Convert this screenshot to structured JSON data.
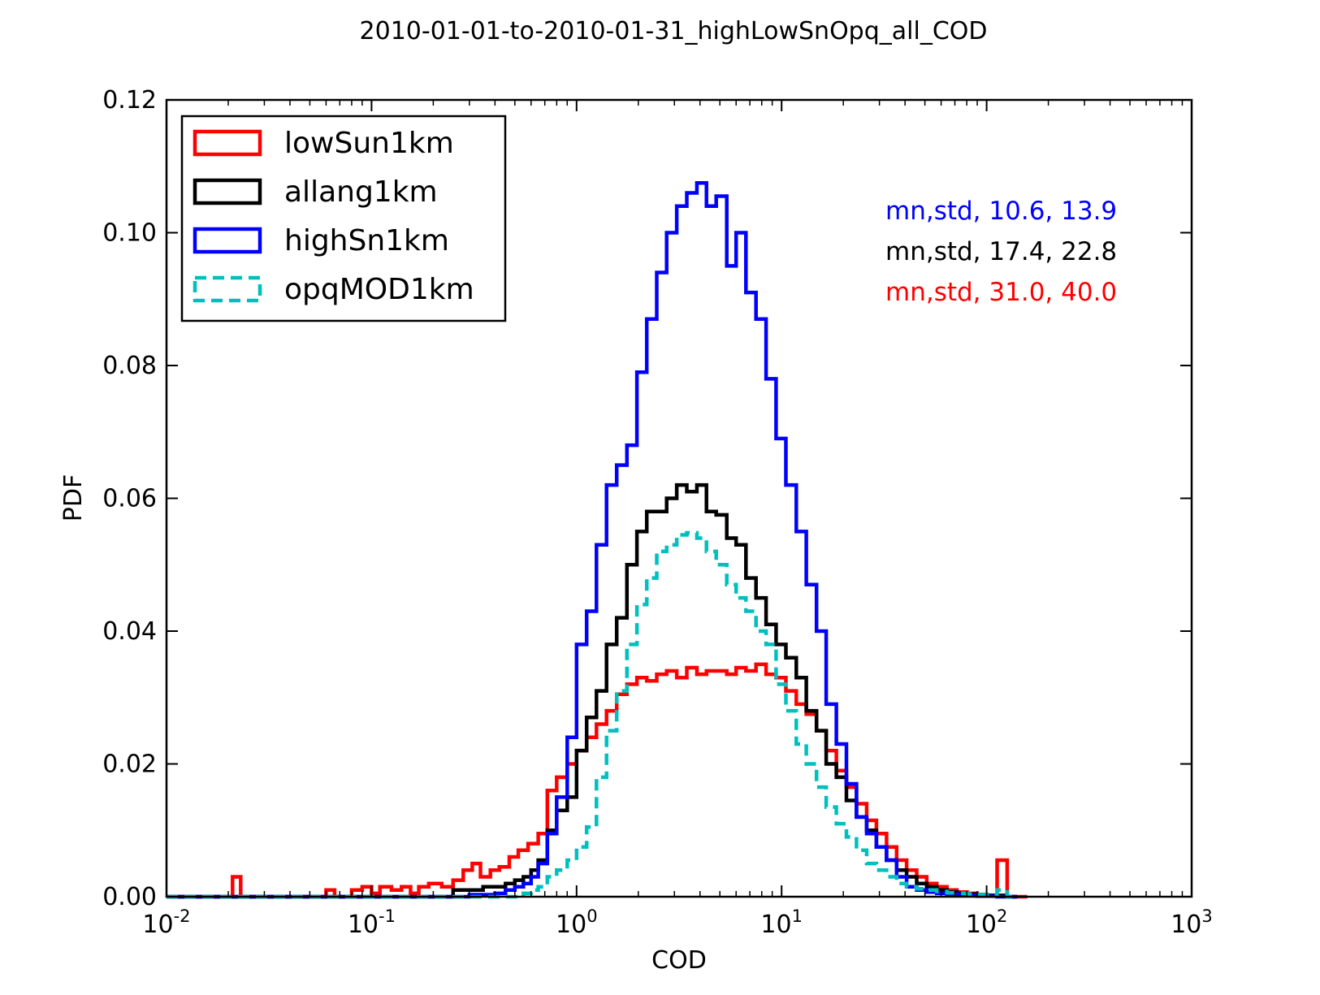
{
  "chart_data": {
    "type": "line",
    "title": "2010-01-01-to-2010-01-31_highLowSnOpq_all_COD",
    "xlabel": "COD",
    "ylabel": "PDF",
    "xscale": "log",
    "xlim": [
      0.01,
      1000
    ],
    "ylim": [
      0,
      0.12
    ],
    "x_ticks": [
      0.01,
      0.1,
      1,
      10,
      100,
      1000
    ],
    "x_tick_labels": [
      {
        "base": "10",
        "exp": "-2"
      },
      {
        "base": "10",
        "exp": "-1"
      },
      {
        "base": "10",
        "exp": "0"
      },
      {
        "base": "10",
        "exp": "1"
      },
      {
        "base": "10",
        "exp": "2"
      },
      {
        "base": "10",
        "exp": "3"
      }
    ],
    "y_ticks": [
      0,
      0.02,
      0.04,
      0.06,
      0.08,
      0.1,
      0.12
    ],
    "y_tick_labels": [
      "0.00",
      "0.02",
      "0.04",
      "0.06",
      "0.08",
      "0.10",
      "0.12"
    ],
    "grid": false,
    "legend_position": "top-left",
    "series": [
      {
        "name": "lowSun1km",
        "color": "#ff0000",
        "style": "solid-step",
        "x": [
          0.01,
          0.021,
          0.023,
          0.06,
          0.066,
          0.08,
          0.09,
          0.1,
          0.11,
          0.125,
          0.14,
          0.155,
          0.17,
          0.19,
          0.22,
          0.25,
          0.28,
          0.31,
          0.34,
          0.38,
          0.42,
          0.47,
          0.52,
          0.58,
          0.65,
          0.72,
          0.8,
          0.9,
          1.0,
          1.12,
          1.25,
          1.4,
          1.57,
          1.76,
          1.97,
          2.2,
          2.46,
          2.75,
          3.08,
          3.45,
          3.86,
          4.3,
          4.8,
          5.4,
          6.0,
          6.7,
          7.5,
          8.4,
          9.4,
          10.5,
          11.8,
          13.2,
          14.8,
          16.5,
          18.5,
          20.7,
          23.2,
          26.0,
          29.0,
          32.5,
          36.4,
          40.7,
          45.6,
          51.0,
          57.1,
          64.0,
          71.6,
          80.2,
          89.8,
          100.5,
          112.5,
          126.0,
          141.0,
          158.0
        ],
        "y": [
          0.0,
          0.003,
          0.0,
          0.001,
          0.0,
          0.001,
          0.0015,
          0.0005,
          0.0015,
          0.001,
          0.0015,
          0.0005,
          0.0015,
          0.002,
          0.0015,
          0.0025,
          0.004,
          0.005,
          0.003,
          0.004,
          0.0045,
          0.006,
          0.007,
          0.008,
          0.0095,
          0.016,
          0.018,
          0.02,
          0.022,
          0.024,
          0.026,
          0.028,
          0.0305,
          0.032,
          0.033,
          0.0325,
          0.0335,
          0.034,
          0.033,
          0.0345,
          0.0335,
          0.034,
          0.034,
          0.0335,
          0.0345,
          0.034,
          0.035,
          0.0335,
          0.033,
          0.031,
          0.029,
          0.0275,
          0.025,
          0.022,
          0.019,
          0.0165,
          0.014,
          0.0115,
          0.0095,
          0.0075,
          0.0055,
          0.004,
          0.003,
          0.002,
          0.0015,
          0.001,
          0.0007,
          0.0005,
          0.0003,
          0.0002,
          0.0055,
          0.0,
          0.0,
          0.0
        ]
      },
      {
        "name": "allang1km",
        "color": "#000000",
        "style": "solid-step",
        "x": [
          0.01,
          0.25,
          0.3,
          0.35,
          0.4,
          0.45,
          0.5,
          0.55,
          0.6,
          0.65,
          0.72,
          0.8,
          0.9,
          1.0,
          1.12,
          1.25,
          1.4,
          1.57,
          1.76,
          1.97,
          2.2,
          2.46,
          2.75,
          3.08,
          3.45,
          3.86,
          4.3,
          4.8,
          5.4,
          6.0,
          6.7,
          7.5,
          8.4,
          9.4,
          10.5,
          11.8,
          13.2,
          14.8,
          16.5,
          18.5,
          20.7,
          23.2,
          26.0,
          29.0,
          32.5,
          36.4,
          40.7,
          45.6,
          51.0,
          57.1,
          64.0,
          71.6,
          80.2,
          89.8,
          100.5,
          112.5,
          126.0,
          141.0
        ],
        "y": [
          0.0,
          0.001,
          0.001,
          0.0015,
          0.0015,
          0.002,
          0.0025,
          0.003,
          0.004,
          0.0055,
          0.01,
          0.013,
          0.015,
          0.022,
          0.027,
          0.031,
          0.038,
          0.042,
          0.05,
          0.055,
          0.058,
          0.058,
          0.06,
          0.062,
          0.061,
          0.062,
          0.058,
          0.0575,
          0.054,
          0.053,
          0.048,
          0.045,
          0.041,
          0.038,
          0.036,
          0.033,
          0.028,
          0.025,
          0.02,
          0.018,
          0.0145,
          0.012,
          0.01,
          0.0075,
          0.0055,
          0.004,
          0.003,
          0.002,
          0.0015,
          0.001,
          0.0007,
          0.0005,
          0.0004,
          0.0003,
          0.0002,
          0.0002,
          0.0,
          0.0
        ]
      },
      {
        "name": "highSn1km",
        "color": "#0000ff",
        "style": "solid-step",
        "x": [
          0.01,
          0.3,
          0.4,
          0.45,
          0.5,
          0.55,
          0.6,
          0.65,
          0.72,
          0.8,
          0.9,
          1.0,
          1.12,
          1.25,
          1.4,
          1.57,
          1.76,
          1.97,
          2.2,
          2.46,
          2.75,
          3.08,
          3.45,
          3.86,
          4.3,
          4.8,
          5.4,
          6.0,
          6.7,
          7.5,
          8.4,
          9.4,
          10.5,
          11.8,
          13.2,
          14.8,
          16.5,
          18.5,
          20.7,
          23.2,
          26.0,
          29.0,
          32.5,
          36.4,
          40.7,
          45.6,
          51.0,
          57.1,
          64.0,
          71.6,
          80.2,
          89.8,
          100.5,
          112.5,
          126.0,
          141.0
        ],
        "y": [
          0.0,
          0.0003,
          0.0005,
          0.001,
          0.0015,
          0.002,
          0.003,
          0.005,
          0.0095,
          0.015,
          0.024,
          0.038,
          0.043,
          0.053,
          0.062,
          0.065,
          0.068,
          0.079,
          0.087,
          0.094,
          0.1,
          0.104,
          0.106,
          0.1075,
          0.104,
          0.1055,
          0.095,
          0.1,
          0.091,
          0.087,
          0.078,
          0.069,
          0.062,
          0.055,
          0.047,
          0.04,
          0.029,
          0.023,
          0.017,
          0.012,
          0.0095,
          0.0075,
          0.0055,
          0.003,
          0.0015,
          0.001,
          0.0007,
          0.0005,
          0.0004,
          0.0003,
          0.0002,
          0.0001,
          0.0001,
          0.0,
          0.0,
          0.0
        ]
      },
      {
        "name": "opqMOD1km",
        "color": "#00bfbf",
        "style": "dashed-step",
        "x": [
          0.01,
          0.55,
          0.6,
          0.65,
          0.72,
          0.8,
          0.9,
          1.0,
          1.12,
          1.25,
          1.4,
          1.57,
          1.76,
          1.97,
          2.2,
          2.46,
          2.75,
          3.08,
          3.45,
          3.86,
          4.3,
          4.8,
          5.4,
          6.0,
          6.7,
          7.5,
          8.4,
          9.4,
          10.5,
          11.8,
          13.2,
          14.8,
          16.5,
          18.5,
          20.7,
          23.2,
          26.0,
          29.0,
          32.5,
          36.4,
          40.7,
          45.6,
          51.0,
          57.1,
          64.0,
          71.6,
          80.2,
          89.8,
          100.5,
          112.5,
          126.0,
          141.0
        ],
        "y": [
          0.0,
          0.0005,
          0.001,
          0.0015,
          0.003,
          0.004,
          0.0055,
          0.0075,
          0.0105,
          0.018,
          0.025,
          0.031,
          0.038,
          0.044,
          0.048,
          0.052,
          0.053,
          0.0545,
          0.0548,
          0.054,
          0.052,
          0.05,
          0.047,
          0.045,
          0.043,
          0.04,
          0.038,
          0.032,
          0.028,
          0.023,
          0.02,
          0.0165,
          0.0135,
          0.011,
          0.009,
          0.007,
          0.005,
          0.004,
          0.003,
          0.002,
          0.0015,
          0.0012,
          0.001,
          0.0008,
          0.0006,
          0.0005,
          0.0004,
          0.0003,
          0.0002,
          0.001,
          0.0,
          0.0
        ]
      }
    ],
    "annotations": [
      {
        "text": "mn,std, 10.6, 13.9",
        "color": "#0000ff"
      },
      {
        "text": "mn,std, 17.4, 22.8",
        "color": "#000000"
      },
      {
        "text": "mn,std, 31.0, 40.0",
        "color": "#ff0000"
      }
    ]
  }
}
